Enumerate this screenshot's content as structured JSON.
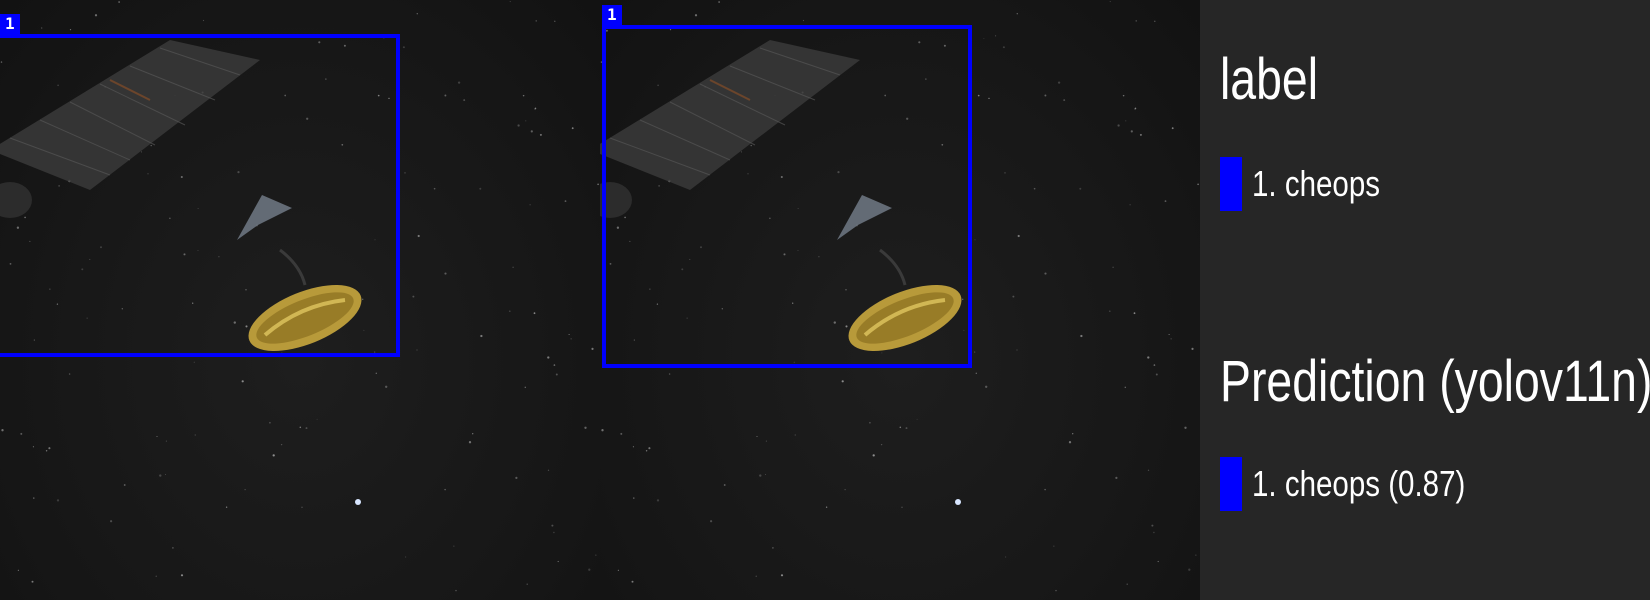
{
  "panels": {
    "label": {
      "box_number": "1"
    },
    "prediction": {
      "box_number": "1"
    }
  },
  "legend": {
    "label_title": "label",
    "label_item": "1. cheops",
    "prediction_title": "Prediction (yolov11n)",
    "prediction_item": "1. cheops (0.87)"
  },
  "colors": {
    "box": "#0000ff",
    "background": "#171717",
    "legend_background": "#262626",
    "text": "#ffffff"
  }
}
